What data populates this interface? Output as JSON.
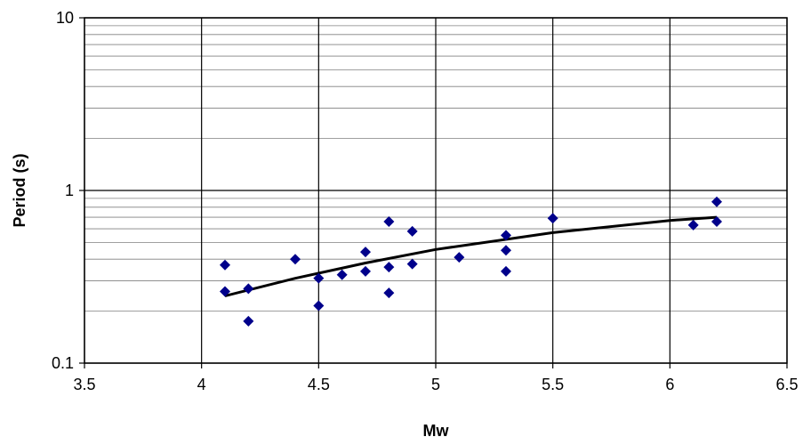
{
  "chart_data": {
    "type": "scatter",
    "title": "",
    "xlabel": "Mw",
    "ylabel": "Period (s)",
    "xlim": [
      3.5,
      6.5
    ],
    "ylim": [
      0.1,
      10
    ],
    "y_scale": "log",
    "x_ticks": [
      "3.5",
      "4",
      "4.5",
      "5",
      "5.5",
      "6",
      "6.5"
    ],
    "y_ticks": [
      "0.1",
      "1",
      "10"
    ],
    "grid": "major and minor horizontal, major vertical",
    "legend": "none",
    "colors": {
      "points": "#00008b",
      "fit": "#000000",
      "grid_major": "#000000",
      "grid_minor": "#808080"
    },
    "series": [
      {
        "type": "scatter",
        "marker": "diamond",
        "points": [
          {
            "x": 4.1,
            "y": 0.37
          },
          {
            "x": 4.1,
            "y": 0.26
          },
          {
            "x": 4.2,
            "y": 0.27
          },
          {
            "x": 4.2,
            "y": 0.175
          },
          {
            "x": 4.4,
            "y": 0.4
          },
          {
            "x": 4.5,
            "y": 0.31
          },
          {
            "x": 4.5,
            "y": 0.215
          },
          {
            "x": 4.6,
            "y": 0.325
          },
          {
            "x": 4.7,
            "y": 0.44
          },
          {
            "x": 4.7,
            "y": 0.34
          },
          {
            "x": 4.8,
            "y": 0.66
          },
          {
            "x": 4.8,
            "y": 0.36
          },
          {
            "x": 4.8,
            "y": 0.255
          },
          {
            "x": 4.9,
            "y": 0.58
          },
          {
            "x": 4.9,
            "y": 0.375
          },
          {
            "x": 5.1,
            "y": 0.41
          },
          {
            "x": 5.3,
            "y": 0.55
          },
          {
            "x": 5.3,
            "y": 0.45
          },
          {
            "x": 5.3,
            "y": 0.34
          },
          {
            "x": 5.5,
            "y": 0.69
          },
          {
            "x": 6.1,
            "y": 0.63
          },
          {
            "x": 6.2,
            "y": 0.86
          },
          {
            "x": 6.2,
            "y": 0.66
          }
        ]
      },
      {
        "type": "line",
        "points": [
          {
            "x": 4.1,
            "y": 0.245
          },
          {
            "x": 4.4,
            "y": 0.31
          },
          {
            "x": 4.7,
            "y": 0.38
          },
          {
            "x": 5.0,
            "y": 0.455
          },
          {
            "x": 5.5,
            "y": 0.57
          },
          {
            "x": 6.0,
            "y": 0.67
          },
          {
            "x": 6.2,
            "y": 0.7
          }
        ]
      }
    ]
  }
}
